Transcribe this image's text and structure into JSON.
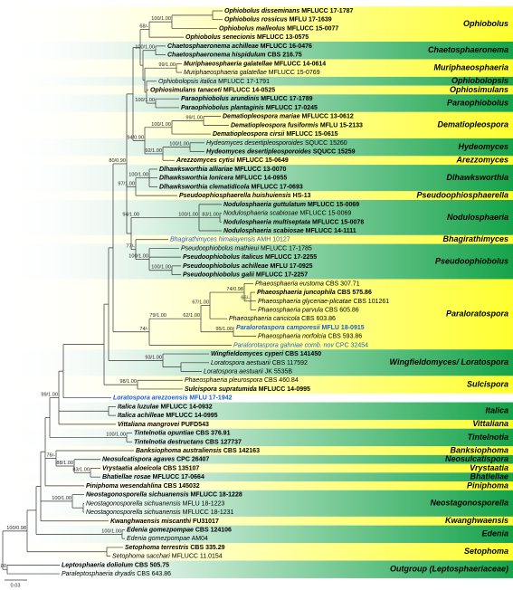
{
  "taxa": [
    {
      "name": "Ophiobolus disseminans",
      "strain": "MFLUCC 17-1787"
    },
    {
      "name": "Ophiobolus rossicus",
      "strain": "MFLU 17-1639"
    },
    {
      "name": "Ophiobolus malleolus",
      "strain": "MFLUCC 15-0077"
    },
    {
      "name": "Ophiobolus senecionis",
      "strain": "MFLUCC 13-0575"
    },
    {
      "name": "Chaetosphaeronema achilleae",
      "strain": "MFLUCC 16-0476"
    },
    {
      "name": "Chaetosphaeronema hispidulum",
      "strain": "CBS 216.75"
    },
    {
      "name": "Muriphaeosphaeria galatellae",
      "strain": "MFLUCC 14-0614"
    },
    {
      "name": "Muriphaeosphaeria galatellae",
      "strain": "MFLUCC 15-0769"
    },
    {
      "name": "Ophiobolopsis italica",
      "strain": "MFLUCC 17-1791"
    },
    {
      "name": "Ophiosimulans tanaceti",
      "strain": "MFLUCC 14-0525"
    },
    {
      "name": "Paraophiobolus arundinis",
      "strain": "MFLUCC 17-1789"
    },
    {
      "name": "Paraophiobolus plantaginis",
      "strain": "MFLUCC 17-0245"
    },
    {
      "name": "Dematiopleospora mariae",
      "strain": "MFLUCC 13-0612"
    },
    {
      "name": "Dematiopleospora fusiformis",
      "strain": "MFLU 15-2133"
    },
    {
      "name": "Dematiopleospora cirsii",
      "strain": "MFLUCC 15-0615"
    },
    {
      "name": "Hydeomyces desertipleosporoides",
      "strain": "SQUCC 15260"
    },
    {
      "name": "Hydeomyces desertipleosporoides",
      "strain": "SQUCC 15259"
    },
    {
      "name": "Arezzomyces cytisi",
      "strain": "MFLUCC 15-0649"
    },
    {
      "name": "Dlhawksworthia alliariae",
      "strain": "MFLUCC 13-0070"
    },
    {
      "name": "Dlhawksworthia lonicera",
      "strain": "MFLUCC 14-0955"
    },
    {
      "name": "Dlhawksworthia clematidicola",
      "strain": "MFLUCC 17-0693"
    },
    {
      "name": "Pseudoophiosphaerella huishuiensis",
      "strain": "HS-13"
    },
    {
      "name": "Nodulosphaeria guttulatum",
      "strain": "MFLUCC 15-0069"
    },
    {
      "name": "Nodulosphaeria scabiosae",
      "strain": "MFLUCC 15-0069"
    },
    {
      "name": "Nodulosphaeria multiseptata",
      "strain": "MFLUCC 15-0078"
    },
    {
      "name": "Nodulosphaeria scabiosae",
      "strain": "MFLUCC 14-1111"
    },
    {
      "name": "Bhagirathimyces himalayensis",
      "strain": "AMH 10127"
    },
    {
      "name": "Pseudoophiobolus mathieui",
      "strain": "MFLUCC 17-1785"
    },
    {
      "name": "Pseudoophiobolus italicus",
      "strain": "MFLUCC 17-2255"
    },
    {
      "name": "Pseudoophiobolus achilleae",
      "strain": "MFLU 17-0925"
    },
    {
      "name": "Pseudoophiobolus galii",
      "strain": "MFLUCC 17-2257"
    },
    {
      "name": "Phaeosphaeria eustoma",
      "strain": "CBS 307.71"
    },
    {
      "name": "Phaeosphaeria juncophila",
      "strain": "CBS 575.86"
    },
    {
      "name": "Phaeosphaeria glyceriae-plicatae",
      "strain": "CBS 101261"
    },
    {
      "name": "Phaeosphaeria parvula",
      "strain": "CBS 605.86"
    },
    {
      "name": "Phaeosphaeria caricicola",
      "strain": "CBS 603.86"
    },
    {
      "name": "Paralorotaspora camporesii",
      "strain": "MFLU 18-0915"
    },
    {
      "name": "Phaeosphaeria norfolcia",
      "strain": "CBS 593.86"
    },
    {
      "name": "Paralorotaspora gahniae comb. nov",
      "strain": "CPC 32454"
    },
    {
      "name": "Wingfieldomyces cyperi",
      "strain": "CBS 141450"
    },
    {
      "name": "Loratospora aestuarii",
      "strain": "CBS 117592"
    },
    {
      "name": "Loratospora aestuarii",
      "strain": "JK 5535B"
    },
    {
      "name": "Phaeosphaeria pleurospora",
      "strain": "CBS 460.84"
    },
    {
      "name": "Sulcispora supratumida",
      "strain": "MFLUCC 14-0995"
    },
    {
      "name": "Loratospora arezzoensis",
      "strain": "MFLU 17-1942"
    },
    {
      "name": "Italica luzulae",
      "strain": "MFLUCC 14-0932"
    },
    {
      "name": "Italica achilleae",
      "strain": "MFLUCC 14-0995"
    },
    {
      "name": "Vittaliana mangrovei",
      "strain": "PUFD543"
    },
    {
      "name": "Tintelnotia opuntiae",
      "strain": "CBS 376.91"
    },
    {
      "name": "Tintelnotia destructans",
      "strain": "CBS 127737"
    },
    {
      "name": "Banksiophoma australiensis",
      "strain": "CBS 142163"
    },
    {
      "name": "Neosulcatispora agaves",
      "strain": "CPC 26407"
    },
    {
      "name": "Vrystaatia aloeicola",
      "strain": "CBS 135107"
    },
    {
      "name": "Bhatiellae rosae",
      "strain": "MFLUCC 17-0664"
    },
    {
      "name": "Piniphoma wesendahlina",
      "strain": "CBS 145032"
    },
    {
      "name": "Neostagonosporella sichuanensis",
      "strain": "MFLUCC 18-1228"
    },
    {
      "name": "Neostagonosporella sichuanensis",
      "strain": "MFLU 18-1223"
    },
    {
      "name": "Neostagonosporella sichuanensis",
      "strain": "MFLUCC 18-1231"
    },
    {
      "name": "Kwanghwaensis miscanthi",
      "strain": "FU31017"
    },
    {
      "name": "Edenia gomezpompae",
      "strain": "CBS 124106"
    },
    {
      "name": "Edenia gomezpompae",
      "strain": "AM04"
    },
    {
      "name": "Setophoma terrestris",
      "strain": "CBS 335.29"
    },
    {
      "name": "Setophoma sacchari",
      "strain": "MFLUCC 11.0154"
    },
    {
      "name": "Leptosphaeria doliolum",
      "strain": "CBS 505.75"
    },
    {
      "name": "Paraleptosphaeria dryadis",
      "strain": "CBS 643.86"
    }
  ],
  "support_values": [
    "100/1.00",
    "68/-",
    "100/1.00",
    "99/1.00",
    "100/1.00",
    "99/1.00",
    "100/1.00",
    "94/0.90",
    "100/1.00",
    "92/1.00",
    "100/1.00",
    "80/0.90",
    "97/1.00",
    "83/1.00",
    "100/1.00",
    "94/1.00",
    "100/1.00",
    "77/-",
    "100/1.00",
    "74/0.98",
    "66/-",
    "67/1.00",
    "62/1.00",
    "79/1.00",
    "95/1.00",
    "74/-",
    "93/1.00",
    "98/1.00",
    "99/1.00",
    "100/1.00",
    "83/1.00",
    "88/1.00",
    "76/-",
    "100/1.00",
    "100/1.00",
    "100/0.98",
    "100/1.00"
  ],
  "clades": [
    "Ophiobolus",
    "Chaetosphaeronema",
    "Muriphaeosphaeria",
    "Ophiobolopsis",
    "Ophiosimulans",
    "Paraophiobolus",
    "Dematiopleospora",
    "Hydeomyces",
    "Arezzomyces",
    "Dlhawksworthia",
    "Pseudoophiosphaerella",
    "Nodulosphaeria",
    "Bhagirathimyces",
    "Pseudoophiobolus",
    "Paraloratospora",
    "Wingfieldomyces/ Loratospora",
    "Sulcispora",
    "Italica",
    "Vittaliana",
    "Tintelnotia",
    "Banksiophoma",
    "Neosulcatispora",
    "Vrystaatia",
    "Bhatiellae",
    "Piniphoma",
    "Neostagonosporella",
    "Kwanghwaensis",
    "Edenia",
    "Setophoma",
    "Outgroup (Leptosphaeriaceae)"
  ],
  "scale_bar": "0.03"
}
